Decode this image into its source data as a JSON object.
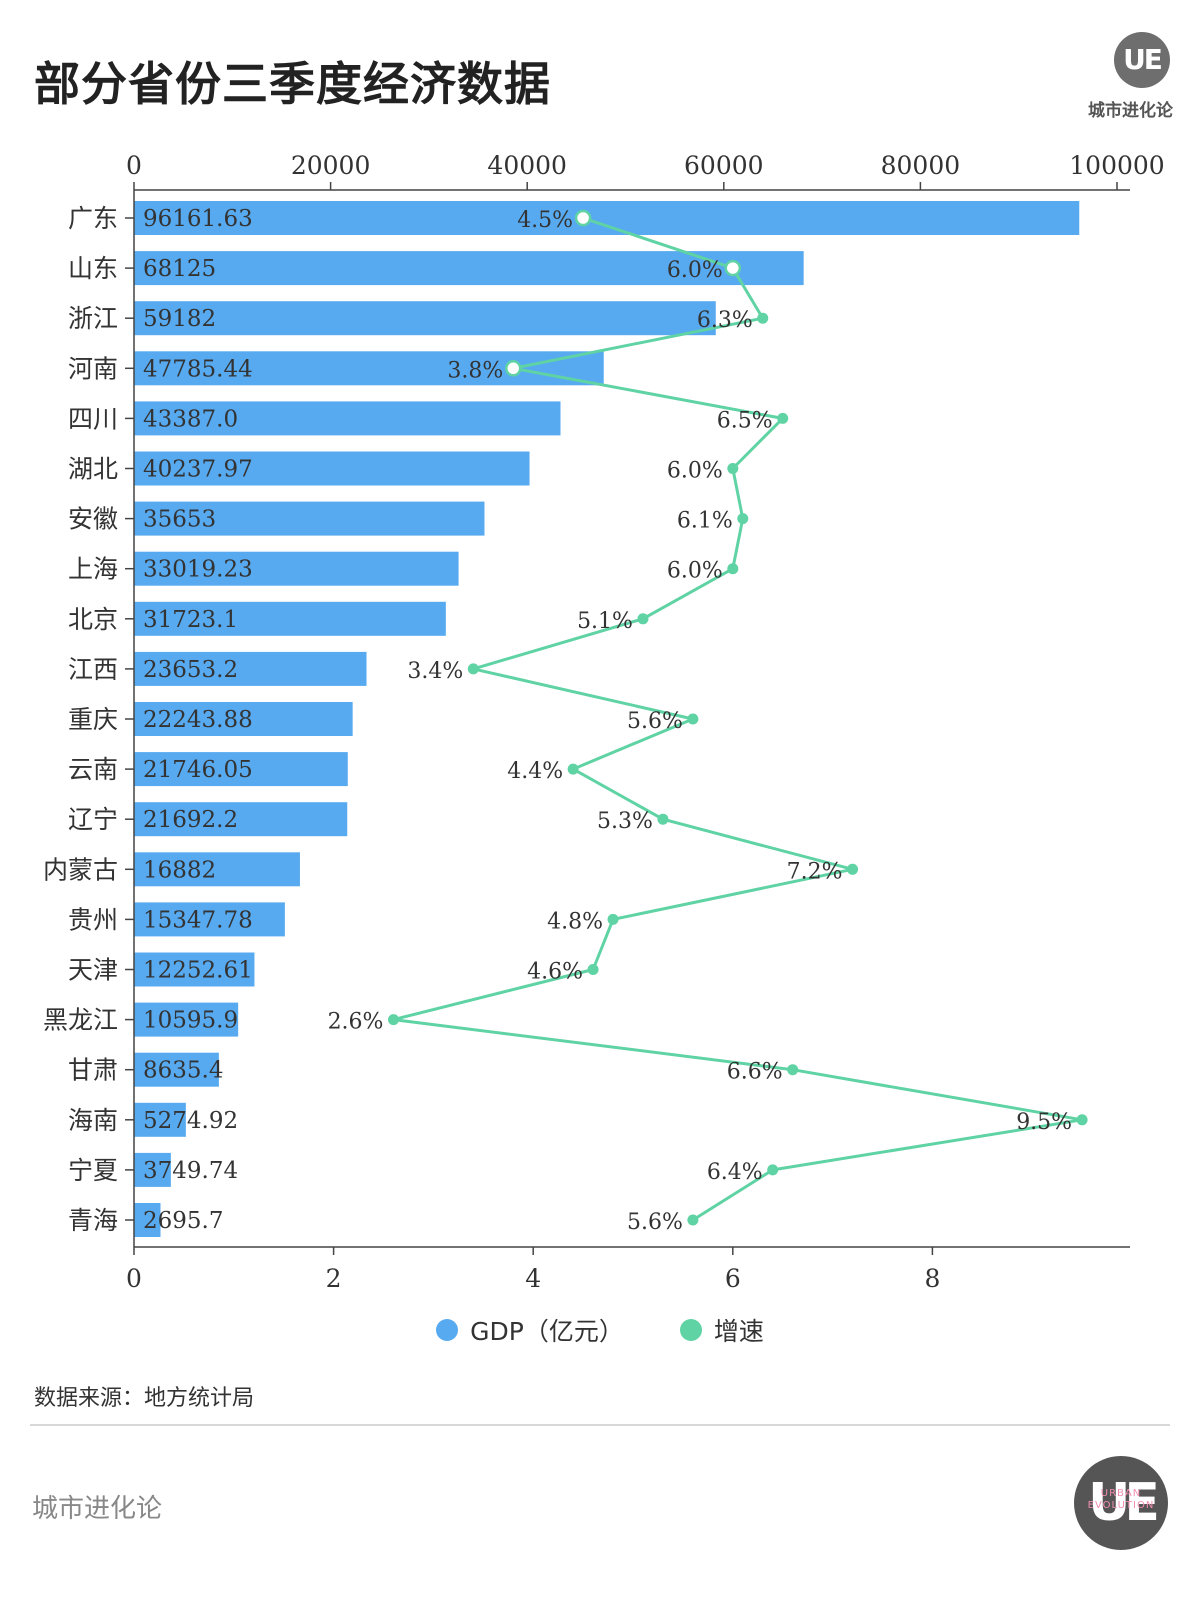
{
  "title": "部分省份三季度经济数据",
  "brand": {
    "logo_text": "UE",
    "name": "城市进化论",
    "logo_sub": "URBAN EVOLUTION"
  },
  "source": "数据来源：地方统计局",
  "colors": {
    "bar": "#57aaf0",
    "line": "#5fd3a4",
    "axis": "#444444",
    "text": "#333333"
  },
  "chart_data": {
    "type": "bar",
    "orientation": "horizontal",
    "categories": [
      "广东",
      "山东",
      "浙江",
      "河南",
      "四川",
      "湖北",
      "安徽",
      "上海",
      "北京",
      "江西",
      "重庆",
      "云南",
      "辽宁",
      "内蒙古",
      "贵州",
      "天津",
      "黑龙江",
      "甘肃",
      "海南",
      "宁夏",
      "青海"
    ],
    "series": [
      {
        "name": "GDP（亿元）",
        "type": "bar",
        "axis": "top",
        "values": [
          96161.63,
          68125,
          59182,
          47785.44,
          43387.0,
          40237.97,
          35653,
          33019.23,
          31723.1,
          23653.2,
          22243.88,
          21746.05,
          21692.2,
          16882,
          15347.78,
          12252.61,
          10595.9,
          8635.4,
          5274.92,
          3749.74,
          2695.7
        ],
        "labels": [
          "96161.63",
          "68125",
          "59182",
          "47785.44",
          "43387.0",
          "40237.97",
          "35653",
          "33019.23",
          "31723.1",
          "23653.2",
          "22243.88",
          "21746.05",
          "21692.2",
          "16882",
          "15347.78",
          "12252.61",
          "10595.9",
          "8635.4",
          "5274.92",
          "3749.74",
          "2695.7"
        ]
      },
      {
        "name": "增速",
        "type": "line",
        "axis": "bottom",
        "values": [
          4.5,
          6.0,
          6.3,
          3.8,
          6.5,
          6.0,
          6.1,
          6.0,
          5.1,
          3.4,
          5.6,
          4.4,
          5.3,
          7.2,
          4.8,
          4.6,
          2.6,
          6.6,
          9.5,
          6.4,
          5.6
        ],
        "labels": [
          "4.5%",
          "6.0%",
          "6.3%",
          "3.8%",
          "6.5%",
          "6.0%",
          "6.1%",
          "6.0%",
          "5.1%",
          "3.4%",
          "5.6%",
          "4.4%",
          "5.3%",
          "7.2%",
          "4.8%",
          "4.6%",
          "2.6%",
          "6.6%",
          "9.5%",
          "6.4%",
          "5.6%"
        ]
      }
    ],
    "top_axis": {
      "ticks": [
        0,
        20000,
        40000,
        60000,
        80000,
        100000
      ],
      "tick_labels": [
        "0",
        "20000",
        "40000",
        "60000",
        "80000",
        "100000"
      ]
    },
    "bottom_axis": {
      "ticks": [
        0,
        2,
        4,
        6,
        8
      ],
      "tick_labels": [
        "0",
        "2",
        "4",
        "6",
        "8"
      ]
    },
    "legend": {
      "position": "bottom",
      "items": [
        "GDP（亿元）",
        "增速"
      ]
    },
    "grid": false
  }
}
